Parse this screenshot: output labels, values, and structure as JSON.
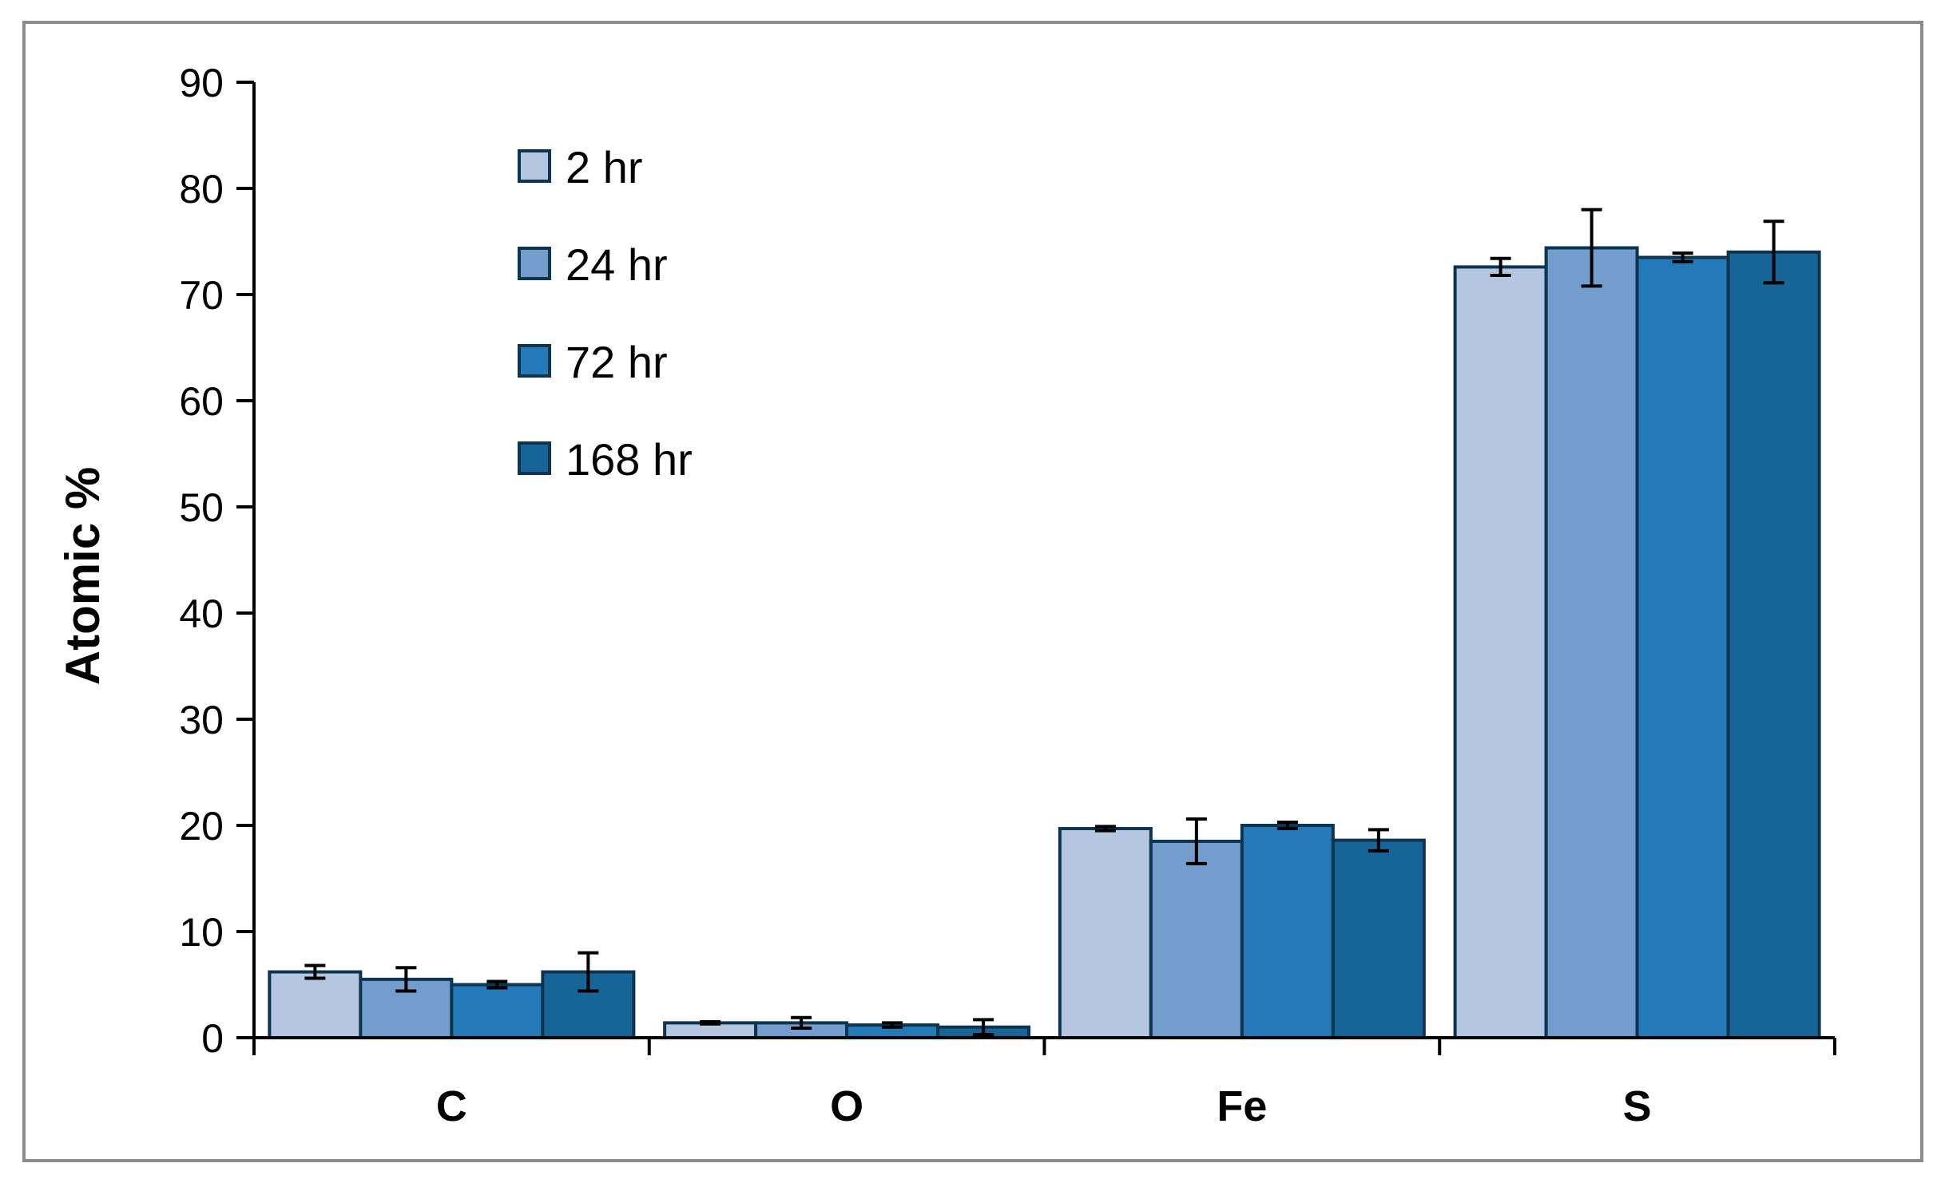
{
  "chart_data": {
    "type": "bar",
    "title": "",
    "xlabel": "",
    "ylabel": "Atomic %",
    "ylim": [
      0,
      90
    ],
    "yticks": [
      "0",
      "10",
      "20",
      "30",
      "40",
      "50",
      "60",
      "70",
      "80",
      "90"
    ],
    "categories": [
      "C",
      "O",
      "Fe",
      "S"
    ],
    "legend_position": "upper-left",
    "grid": false,
    "series": [
      {
        "name": "2 hr",
        "color": "#b4c6e0",
        "values": [
          6.2,
          1.4,
          19.7,
          72.6
        ],
        "errors": [
          0.6,
          0.1,
          0.2,
          0.8
        ]
      },
      {
        "name": "24 hr",
        "color": "#729dcc",
        "values": [
          5.5,
          1.4,
          18.5,
          74.4
        ],
        "errors": [
          1.1,
          0.5,
          2.1,
          3.6
        ]
      },
      {
        "name": "72 hr",
        "color": "#2479b8",
        "values": [
          5.0,
          1.2,
          20.0,
          73.5
        ],
        "errors": [
          0.3,
          0.2,
          0.3,
          0.4
        ]
      },
      {
        "name": "168 hr",
        "color": "#176498",
        "values": [
          6.2,
          1.0,
          18.6,
          74.0
        ],
        "errors": [
          1.8,
          0.7,
          1.0,
          2.9
        ]
      }
    ]
  }
}
